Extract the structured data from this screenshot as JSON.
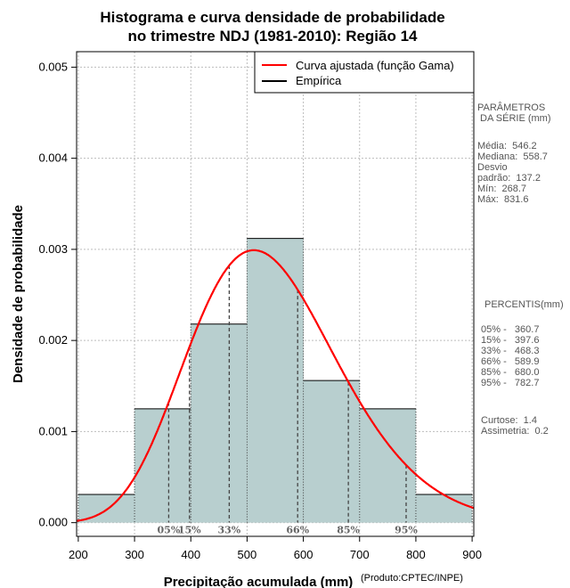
{
  "chart_data": {
    "type": "bar",
    "title_line1": "Histograma e curva densidade de probabilidade",
    "title_line2": "no trimestre NDJ (1981-2010): Região 14",
    "xlabel": "Precipitação acumulada (mm)",
    "ylabel": "Densidade de probabilidade",
    "credit": "(Produto:CPTEC/INPE)",
    "xlim": [
      197,
      903
    ],
    "ylim": [
      -0.00015,
      0.00517
    ],
    "x_ticks": [
      200,
      300,
      400,
      500,
      600,
      700,
      800,
      900
    ],
    "x_tick_labels": [
      "200",
      "300",
      "400",
      "500",
      "600",
      "700",
      "800",
      "900"
    ],
    "y_ticks": [
      0.0,
      0.001,
      0.002,
      0.003,
      0.004,
      0.005
    ],
    "y_tick_labels": [
      "0.000",
      "0.001",
      "0.002",
      "0.003",
      "0.004",
      "0.005"
    ],
    "grid": true,
    "bins": [
      {
        "x0": 200,
        "x1": 300,
        "density": 0.00031
      },
      {
        "x0": 300,
        "x1": 400,
        "density": 0.00125
      },
      {
        "x0": 400,
        "x1": 500,
        "density": 0.00218
      },
      {
        "x0": 500,
        "x1": 600,
        "density": 0.00312
      },
      {
        "x0": 600,
        "x1": 700,
        "density": 0.00156
      },
      {
        "x0": 700,
        "x1": 800,
        "density": 0.00125
      },
      {
        "x0": 800,
        "x1": 900,
        "density": 0.00031
      }
    ],
    "fitted_curve": {
      "name": "Curva ajustada (função Gama)",
      "distribution": "gamma",
      "shape": 15.9,
      "rate": 0.0291,
      "color": "#ff0000"
    },
    "empirical": {
      "name": "Empírica",
      "color": "#000000"
    },
    "legend_position": "top-right",
    "bar_color": "#b8cfcf",
    "percentile_markers": [
      {
        "label": "05%",
        "x": 360.7
      },
      {
        "label": "15%",
        "x": 397.6
      },
      {
        "label": "33%",
        "x": 468.3
      },
      {
        "label": "66%",
        "x": 589.9
      },
      {
        "label": "85%",
        "x": 680.0
      },
      {
        "label": "95%",
        "x": 782.7
      }
    ]
  },
  "side_panel": {
    "params_title": "PARÂMETROS\n DA SÉRIE (mm)",
    "params": "Média:  546.2\nMediana:  558.7\nDesvio\npadrão:  137.2\nMín:  268.7\nMáx:  831.6",
    "percentis_title": "PERCENTIS(mm)",
    "percentis": "05% -   360.7\n15% -   397.6\n33% -   468.3\n66% -   589.9\n85% -   680.0\n95% -   782.7",
    "stats": "Curtose:  1.4\nAssimetria:  0.2"
  }
}
